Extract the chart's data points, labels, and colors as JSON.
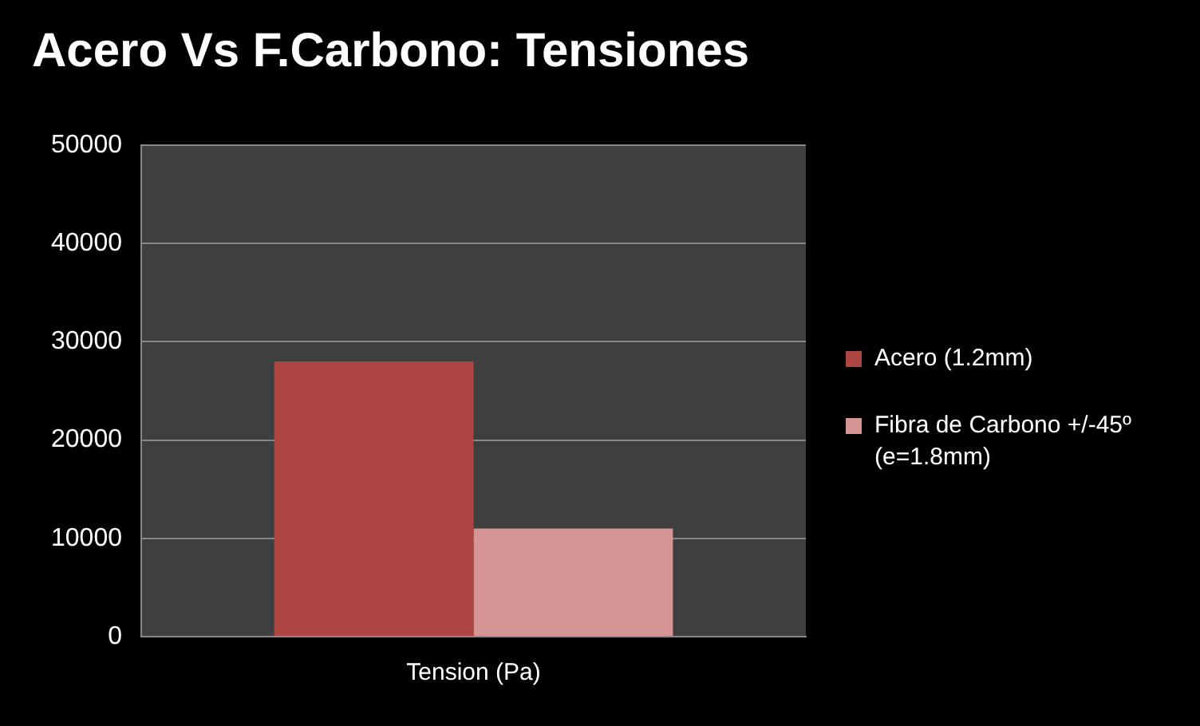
{
  "chart_data": {
    "type": "bar",
    "title": "Acero Vs F.Carbono: Tensiones",
    "categories": [
      "Tension (Pa)"
    ],
    "series": [
      {
        "name": "Acero (1.2mm)",
        "color": "#ad4643",
        "values": [
          28000
        ]
      },
      {
        "name": "Fibra de Carbono +/-45º (e=1.8mm)",
        "color": "#d49594",
        "values": [
          11000
        ]
      }
    ],
    "ylim": [
      0,
      50000
    ],
    "yticks": [
      0,
      10000,
      20000,
      30000,
      40000,
      50000
    ],
    "grid": "y",
    "legend": "right"
  }
}
